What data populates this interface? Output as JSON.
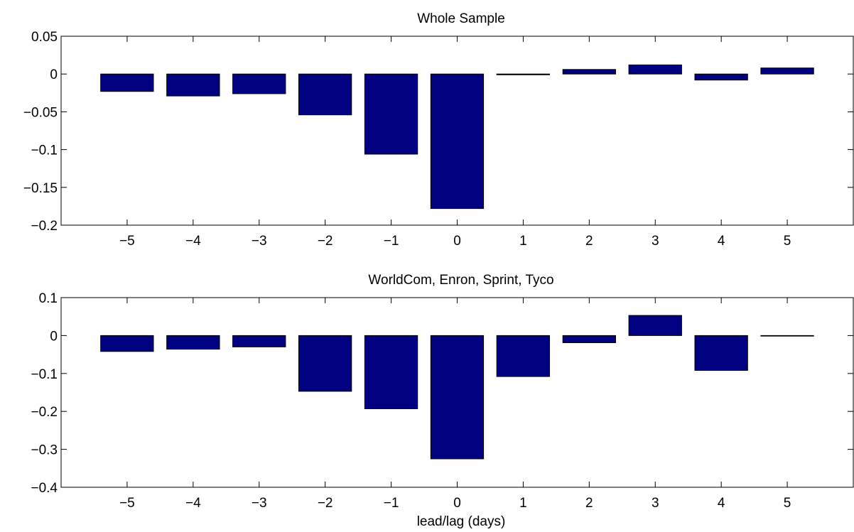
{
  "chart_data": [
    {
      "type": "bar",
      "title": "Whole Sample",
      "xlabel": "",
      "ylabel": "",
      "categories": [
        -5,
        -4,
        -3,
        -2,
        -1,
        0,
        1,
        2,
        3,
        4,
        5
      ],
      "category_labels": [
        "−5",
        "−4",
        "−3",
        "−2",
        "−1",
        "0",
        "1",
        "2",
        "3",
        "4",
        "5"
      ],
      "values": [
        -0.023,
        -0.029,
        -0.026,
        -0.054,
        -0.106,
        -0.178,
        -0.001,
        0.006,
        0.012,
        -0.008,
        0.008
      ],
      "ylim": [
        -0.2,
        0.05
      ],
      "xlim": [
        -6,
        6
      ],
      "yticks": [
        -0.2,
        -0.15,
        -0.1,
        -0.05,
        0,
        0.05
      ],
      "ytick_labels": [
        "−0.2",
        "−0.15",
        "−0.1",
        "−0.05",
        "0",
        "0.05"
      ],
      "bar_color": "#000080",
      "grid": false
    },
    {
      "type": "bar",
      "title": "WorldCom, Enron, Sprint, Tyco",
      "xlabel": "lead/lag (days)",
      "ylabel": "",
      "categories": [
        -5,
        -4,
        -3,
        -2,
        -1,
        0,
        1,
        2,
        3,
        4,
        5
      ],
      "category_labels": [
        "−5",
        "−4",
        "−3",
        "−2",
        "−1",
        "0",
        "1",
        "2",
        "3",
        "4",
        "5"
      ],
      "values": [
        -0.042,
        -0.036,
        -0.03,
        -0.147,
        -0.193,
        -0.325,
        -0.108,
        -0.019,
        0.053,
        -0.092,
        -0.001
      ],
      "ylim": [
        -0.4,
        0.1
      ],
      "xlim": [
        -6,
        6
      ],
      "yticks": [
        -0.4,
        -0.3,
        -0.2,
        -0.1,
        0,
        0.1
      ],
      "ytick_labels": [
        "−0.4",
        "−0.3",
        "−0.2",
        "−0.1",
        "0",
        "0.1"
      ],
      "bar_color": "#000080",
      "grid": false
    }
  ]
}
